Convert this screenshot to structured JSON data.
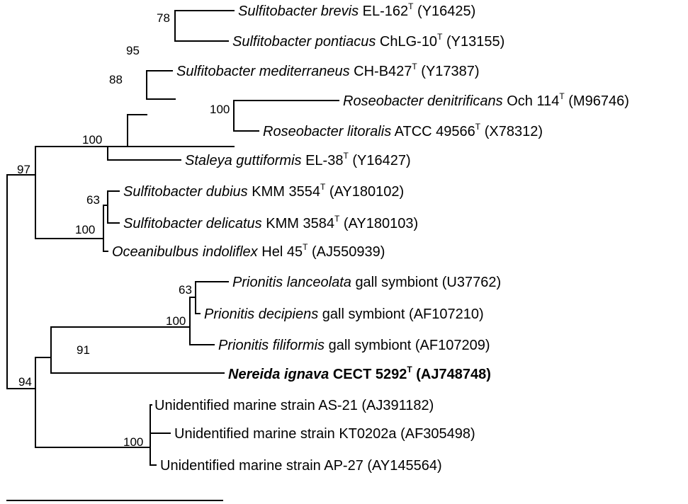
{
  "leaves": [
    {
      "id": "sb",
      "genus_species": "Sulfitobacter brevis",
      "strain": "EL-162",
      "type_mark": "T",
      "accession": "(Y16425)",
      "bold": false
    },
    {
      "id": "sp",
      "genus_species": "Sulfitobacter pontiacus",
      "strain": "ChLG-10",
      "type_mark": "T",
      "accession": "(Y13155)",
      "bold": false
    },
    {
      "id": "sm",
      "genus_species": "Sulfitobacter mediterraneus",
      "strain": "CH-B427",
      "type_mark": "T",
      "accession": "(Y17387)",
      "bold": false
    },
    {
      "id": "rd",
      "genus_species": "Roseobacter denitrificans",
      "strain": "Och 114",
      "type_mark": "T",
      "accession": "(M96746)",
      "bold": false
    },
    {
      "id": "rl",
      "genus_species": "Roseobacter litoralis",
      "strain": "ATCC 49566",
      "type_mark": "T",
      "accession": "(X78312)",
      "bold": false
    },
    {
      "id": "sg",
      "genus_species": "Staleya guttiformis",
      "strain": "EL-38",
      "type_mark": "T",
      "accession": "(Y16427)",
      "bold": false
    },
    {
      "id": "sdu",
      "genus_species": "Sulfitobacter dubius",
      "strain": "KMM 3554",
      "type_mark": "T",
      "accession": "(AY180102)",
      "bold": false
    },
    {
      "id": "sde",
      "genus_species": "Sulfitobacter delicatus",
      "strain": "KMM 3584",
      "type_mark": "T",
      "accession": "(AY180103)",
      "bold": false
    },
    {
      "id": "oi",
      "genus_species": "Oceanibulbus indoliflex",
      "strain": "Hel 45",
      "type_mark": "T",
      "accession": "(AJ550939)",
      "bold": false
    },
    {
      "id": "pl",
      "genus_species": "Prionitis lanceolata",
      "strain": "gall symbiont",
      "type_mark": "",
      "accession": "(U37762)",
      "bold": false
    },
    {
      "id": "pd",
      "genus_species": "Prionitis decipiens",
      "strain": "gall symbiont",
      "type_mark": "",
      "accession": "(AF107210)",
      "bold": false
    },
    {
      "id": "pf",
      "genus_species": "Prionitis filiformis",
      "strain": "gall symbiont",
      "type_mark": "",
      "accession": "(AF107209)",
      "bold": false
    },
    {
      "id": "ni",
      "genus_species": "Nereida ignava",
      "strain": "CECT 5292",
      "type_mark": "T",
      "accession": "(AJ748748)",
      "bold": true
    },
    {
      "id": "u1",
      "genus_species": "",
      "strain": "Unidentified marine strain AS-21",
      "type_mark": "",
      "accession": "(AJ391182)",
      "bold": false
    },
    {
      "id": "u2",
      "genus_species": "",
      "strain": "Unidentified marine strain KT0202a",
      "type_mark": "",
      "accession": "(AF305498)",
      "bold": false
    },
    {
      "id": "u3",
      "genus_species": "",
      "strain": "Unidentified marine strain AP-27",
      "type_mark": "",
      "accession": "(AY145564)",
      "bold": false
    }
  ],
  "bootstrap_values": {
    "n78": "78",
    "n95": "95",
    "n88": "88",
    "n100_roseo": "100",
    "n100_a": "100",
    "n97": "97",
    "n63_sulf": "63",
    "n100_sulf": "100",
    "n63_prio": "63",
    "n100_prio": "100",
    "n91": "91",
    "n94": "94",
    "n100_unid": "100"
  }
}
